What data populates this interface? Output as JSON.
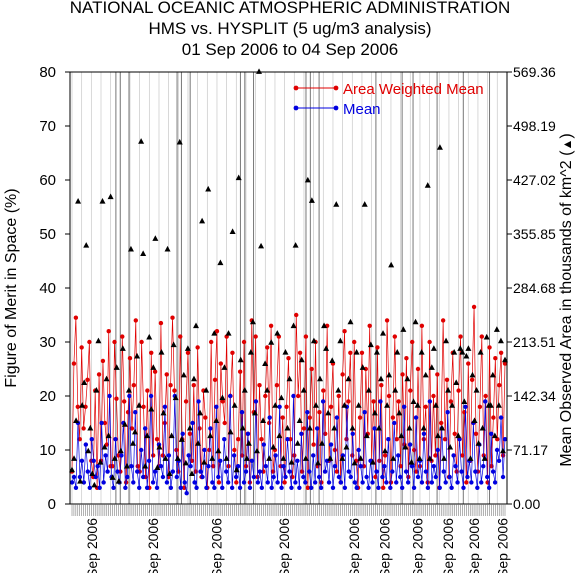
{
  "title": [
    "NATIONAL OCEANIC ATMOSPHERIC ADMINISTRATION",
    "HMS vs. HYSPLIT (5 ug/m3 analysis)",
    "01 Sep 2006 to 04 Sep 2006"
  ],
  "chart_data": {
    "type": "line",
    "ylabel": "Figure of Merit in Space (%)",
    "y2label": "Mean Observed Area in thousands of km^2",
    "y2marker": "▲",
    "ylim": [
      0,
      80
    ],
    "yticks": [
      "0",
      "10",
      "20",
      "30",
      "40",
      "50",
      "60",
      "70",
      "80"
    ],
    "y2lim": [
      0.0,
      569.36
    ],
    "y2ticks": [
      "0.00",
      "71.17",
      "142.34",
      "213.51",
      "284.68",
      "355.85",
      "427.02",
      "498.19",
      "569.36"
    ],
    "xlabels": [
      {
        "pos": 0.05,
        "text": "Sep 2006"
      },
      {
        "pos": 0.19,
        "text": "Sep 2006"
      },
      {
        "pos": 0.335,
        "text": "Sep 2006"
      },
      {
        "pos": 0.49,
        "text": "Sep 2006"
      },
      {
        "pos": 0.65,
        "text": "Sep 2006"
      },
      {
        "pos": 0.72,
        "text": "Sep 2006"
      },
      {
        "pos": 0.795,
        "text": "Sep 2006"
      },
      {
        "pos": 0.865,
        "text": "Sep 2006"
      },
      {
        "pos": 0.925,
        "text": "Sep 2006"
      },
      {
        "pos": 0.99,
        "text": "Sep 2006"
      }
    ],
    "periodBounds": [
      0.105,
      0.115,
      0.135,
      0.245,
      0.255,
      0.275,
      0.39,
      0.4,
      0.42,
      0.54,
      0.55,
      0.57,
      0.7,
      0.76,
      0.785,
      0.84,
      0.9,
      0.96
    ],
    "legend": {
      "position": "top-right",
      "entries": [
        {
          "name": "Area Weighted Mean",
          "color": "#e00000"
        },
        {
          "name": "Mean",
          "color": "#0000e0"
        }
      ]
    },
    "series": [
      {
        "name": "Area Weighted Mean",
        "color": "#e00000",
        "values": [
          6,
          26,
          34.5,
          18,
          12,
          29,
          14,
          18,
          23,
          30,
          8,
          5,
          21,
          3,
          24,
          8,
          26.5,
          15,
          11,
          32,
          7,
          7,
          30,
          19.5,
          9,
          6,
          31,
          19,
          4,
          17,
          27,
          14,
          22,
          34,
          7,
          6,
          30,
          18,
          5,
          21,
          3,
          28,
          9,
          24.5,
          12,
          7,
          33.5,
          9,
          15,
          24,
          5,
          22,
          34.5,
          21,
          10,
          6,
          31,
          12,
          3,
          19,
          28,
          13,
          8,
          22,
          6,
          29,
          14,
          5,
          21,
          16,
          3,
          10,
          30,
          7,
          23,
          32,
          4,
          26,
          19,
          15,
          31,
          7,
          20,
          28,
          10,
          4,
          12,
          24.5,
          9,
          30,
          7,
          13,
          4,
          34,
          17,
          31,
          5,
          22,
          12,
          6,
          20,
          29,
          15,
          33,
          6,
          10,
          22,
          31,
          7,
          16,
          4,
          18,
          27,
          12,
          5,
          9,
          35,
          20,
          28,
          6,
          14,
          31,
          3,
          16,
          25,
          11,
          30,
          7,
          17,
          4,
          21,
          13,
          33,
          8,
          18,
          26,
          10,
          6,
          20,
          4,
          24,
          32,
          12,
          19,
          28,
          9,
          30,
          8,
          3,
          16,
          28,
          7,
          25,
          13,
          33,
          8,
          19,
          5,
          29,
          8,
          22,
          3,
          9,
          34,
          20,
          4,
          16,
          31,
          12,
          19,
          7,
          24,
          11,
          27,
          5,
          21,
          30,
          10,
          6,
          25,
          7,
          33,
          12,
          18,
          4,
          30,
          8,
          20,
          9,
          24,
          3,
          15,
          34,
          12,
          23,
          5,
          19,
          28,
          13,
          6,
          21,
          31,
          9,
          17,
          4,
          26,
          8,
          23,
          36.5,
          13,
          6,
          18,
          31,
          9,
          20,
          4,
          29,
          7,
          16,
          27,
          12,
          22,
          28,
          9,
          26
        ]
      },
      {
        "name": "Mean",
        "color": "#0000e0",
        "values": [
          4,
          5,
          3,
          15,
          5,
          8,
          4,
          11,
          6,
          3,
          12,
          8,
          5,
          7,
          3,
          15,
          4,
          9,
          6,
          20,
          5,
          3,
          12,
          6,
          4,
          9,
          15,
          3,
          5,
          20,
          7,
          4,
          17,
          6,
          3,
          10,
          5,
          14,
          3,
          8,
          20,
          4,
          6,
          3,
          11,
          7,
          5,
          18,
          4,
          9,
          3,
          6,
          20,
          5,
          8,
          3,
          13,
          4,
          2,
          9,
          7,
          15,
          4,
          3,
          19,
          6,
          5,
          10,
          3,
          7,
          14,
          4,
          3,
          18,
          5,
          8,
          3,
          12,
          6,
          4,
          20,
          3,
          9,
          5,
          7,
          3,
          17,
          4,
          6,
          13,
          3,
          8,
          5,
          19,
          4,
          6,
          3,
          11,
          7,
          4,
          16,
          3,
          5,
          9,
          4,
          18,
          3,
          7,
          5,
          12,
          6,
          3,
          20,
          4,
          8,
          3,
          13,
          5,
          4,
          17,
          6,
          3,
          9,
          4,
          14,
          5,
          3,
          19,
          6,
          8,
          4,
          11,
          3,
          7,
          16,
          5,
          4,
          9,
          3,
          18,
          6,
          5,
          13,
          4,
          3,
          10,
          7,
          4,
          17,
          5,
          3,
          8,
          4,
          14,
          6,
          3,
          19,
          5,
          7,
          4,
          12,
          3,
          6,
          15,
          4,
          9,
          5,
          3,
          18,
          6,
          4,
          11,
          7,
          3,
          16,
          5,
          8,
          4,
          13,
          6,
          3,
          19,
          4,
          7,
          5,
          10,
          3,
          14,
          6,
          4,
          17,
          5,
          3,
          9,
          7,
          4,
          12,
          6,
          3,
          18,
          5,
          8,
          4,
          15,
          6,
          3,
          11,
          4,
          7,
          19,
          5,
          3,
          13,
          6,
          4,
          10,
          8,
          16,
          5,
          12
        ]
      },
      {
        "name": "Mean Observed Area",
        "color": "#000000",
        "axis": "right",
        "values": [
          45,
          60,
          110,
          399,
          30,
          130,
          160,
          341,
          70,
          100,
          40,
          25,
          150,
          215,
          55,
          399,
          75,
          165,
          90,
          405,
          35,
          60,
          180,
          30,
          70,
          205,
          105,
          50,
          150,
          336,
          80,
          95,
          195,
          130,
          478,
          330,
          50,
          90,
          220,
          125,
          180,
          350,
          48,
          75,
          200,
          120,
          60,
          336,
          40,
          90,
          210,
          140,
          60,
          477,
          85,
          170,
          54,
          205,
          100,
          40,
          165,
          235,
          80,
          120,
          373,
          55,
          150,
          415,
          90,
          60,
          225,
          110,
          70,
          318,
          140,
          180,
          60,
          225,
          95,
          359,
          130,
          45,
          430,
          190,
          100,
          150,
          60,
          80,
          200,
          240,
          120,
          70,
          570,
          340,
          110,
          185,
          150,
          60,
          213,
          75,
          130,
          225,
          90,
          140,
          60,
          200,
          100,
          165,
          55,
          235,
          341,
          80,
          110,
          190,
          150,
          60,
          427,
          100,
          400,
          215,
          130,
          54,
          165,
          80,
          235,
          205,
          120,
          60,
          189,
          100,
          395,
          150,
          215,
          60,
          130,
          75,
          165,
          240,
          100,
          54,
          200,
          130,
          60,
          180,
          395,
          90,
          150,
          210,
          55,
          120,
          200,
          100,
          165,
          225,
          70,
          130,
          170,
          315,
          60,
          150,
          200,
          120,
          90,
          230,
          75,
          165,
          100,
          55,
          135,
          240,
          130,
          60,
          200,
          100,
          170,
          420,
          60,
          180,
          205,
          130,
          90,
          470,
          100,
          60,
          215,
          150,
          75,
          130,
          200,
          160,
          90,
          205,
          200,
          135,
          195,
          205,
          60,
          170,
          110,
          150,
          80,
          200,
          100,
          60,
          220,
          130,
          130,
          170,
          90,
          230,
          130,
          215,
          70,
          190
        ]
      }
    ]
  }
}
